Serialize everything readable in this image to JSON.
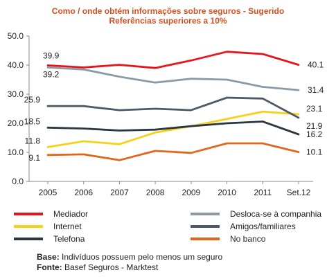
{
  "chart_data": {
    "type": "line",
    "title_line1": "Como / onde obtém informações sobre seguros - Sugerido",
    "title_line2": "Referências superiores a 10%",
    "categories": [
      "2005",
      "2006",
      "2007",
      "2008",
      "2009",
      "2010",
      "2011",
      "Set.12"
    ],
    "ylim": [
      0,
      50
    ],
    "yticks": [
      "0.0",
      "10.0",
      "20.0",
      "30.0",
      "40.0",
      "50.0"
    ],
    "grid": false,
    "legend_position": "bottom",
    "series": [
      {
        "name": "Mediador",
        "color": "#e8141c",
        "values": [
          39.9,
          39.2,
          40.1,
          39.0,
          41.6,
          44.6,
          43.8,
          40.1
        ],
        "start_label": "39.9",
        "end_label": "40.1"
      },
      {
        "name": "Desloca-se à companhia",
        "color": "#8c9aa6",
        "values": [
          39.2,
          38.5,
          36.0,
          34.0,
          35.3,
          35.0,
          32.5,
          31.4
        ],
        "start_label": "39.2",
        "end_label": "31.4"
      },
      {
        "name": "Internet",
        "color": "#f6d11a",
        "values": [
          11.8,
          13.8,
          12.8,
          16.8,
          19.0,
          21.5,
          24.0,
          23.1
        ],
        "start_label": "11.8",
        "end_label": "23.1"
      },
      {
        "name": "Amigos/familiares",
        "color": "#4d5a66",
        "values": [
          25.9,
          25.9,
          24.5,
          25.0,
          24.5,
          28.8,
          28.5,
          21.9
        ],
        "start_label": "25.9",
        "end_label": "21.9"
      },
      {
        "name": "Telefona",
        "color": "#2a3640",
        "values": [
          18.5,
          18.2,
          17.5,
          17.8,
          19.0,
          20.0,
          20.6,
          16.2
        ],
        "start_label": "18.5",
        "end_label": "16.2"
      },
      {
        "name": "No banco",
        "color": "#e0661a",
        "values": [
          9.1,
          9.3,
          7.3,
          10.5,
          9.8,
          13.1,
          13.1,
          10.1
        ],
        "start_label": "9.1",
        "end_label": "10.1"
      }
    ]
  },
  "notes": {
    "base_label": "Base:",
    "base_text": " Indivíduos possuem pelo menos um seguro",
    "source_label": "Fonte:",
    "source_text": " Basef Seguros - Marktest"
  }
}
